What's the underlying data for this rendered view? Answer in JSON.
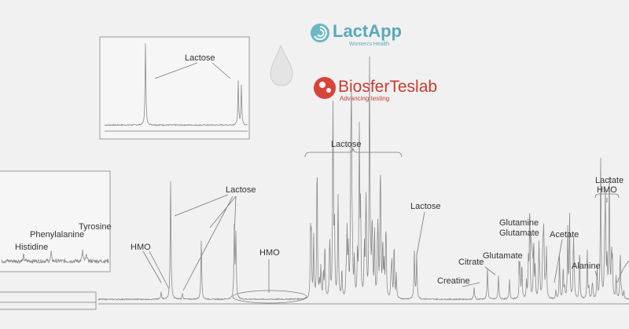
{
  "logos": [
    {
      "name": "LactApp",
      "tagline": "Women's Health"
    },
    {
      "name": "BiosferTeslab",
      "tagline": "Advancing testing"
    }
  ],
  "labels": {
    "inset_lactose": "Lactose",
    "histidine": "Histidine",
    "phenylalanine": "Phenylalanine",
    "tyrosine": "Tyrosine",
    "hmo_left": "HMO",
    "lactose_left": "Lactose",
    "hmo_mid": "HMO",
    "lactose_top": "Lactose",
    "lactose_right": "Lactose",
    "creatine": "Creatine",
    "citrate": "Citrate",
    "glutamate": "Glutamate",
    "glutamine": "Glutamine",
    "glutamate2": "Glutamate",
    "acetate": "Acetate",
    "alanine": "Alanine",
    "lactate": "Lactate",
    "hmo_right": "HMO"
  }
}
